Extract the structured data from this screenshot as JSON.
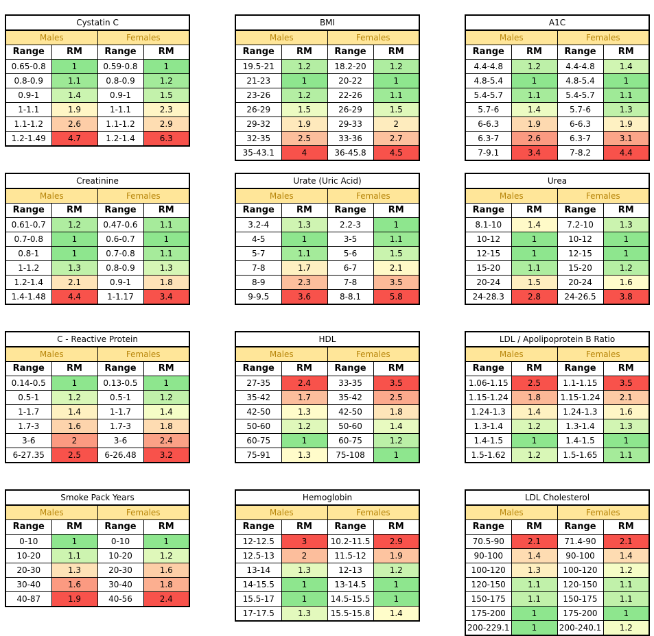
{
  "labels": {
    "males": "Males",
    "females": "Females",
    "range": "Range",
    "rm": "RM"
  },
  "colors": {
    "header_fill": "#ffe699",
    "header_text": "#b8860b",
    "scale_low": "#8ee68e",
    "scale_mid": "#ffffcc",
    "scale_high": "#f8524b"
  },
  "tables": [
    {
      "title": "Cystatin C",
      "rows": [
        {
          "mr": "0.65-0.8",
          "mv": "1",
          "fr": "0.59-0.8",
          "fv": "1"
        },
        {
          "mr": "0.8-0.9",
          "mv": "1.1",
          "fr": "0.8-0.9",
          "fv": "1.2"
        },
        {
          "mr": "0.9-1",
          "mv": "1.4",
          "fr": "0.9-1",
          "fv": "1.5"
        },
        {
          "mr": "1-1.1",
          "mv": "1.9",
          "fr": "1-1.1",
          "fv": "2.3"
        },
        {
          "mr": "1.1-1.2",
          "mv": "2.6",
          "fr": "1.1-1.2",
          "fv": "2.9"
        },
        {
          "mr": "1.2-1.49",
          "mv": "4.7",
          "fr": "1.2-1.4",
          "fv": "6.3"
        }
      ]
    },
    {
      "title": "BMI",
      "rows": [
        {
          "mr": "19.5-21",
          "mv": "1.2",
          "fr": "18.2-20",
          "fv": "1.2"
        },
        {
          "mr": "21-23",
          "mv": "1",
          "fr": "20-22",
          "fv": "1"
        },
        {
          "mr": "23-26",
          "mv": "1.2",
          "fr": "22-26",
          "fv": "1.1"
        },
        {
          "mr": "26-29",
          "mv": "1.5",
          "fr": "26-29",
          "fv": "1.5"
        },
        {
          "mr": "29-32",
          "mv": "1.9",
          "fr": "29-33",
          "fv": "2"
        },
        {
          "mr": "32-35",
          "mv": "2.5",
          "fr": "33-36",
          "fv": "2.7"
        },
        {
          "mr": "35-43.1",
          "mv": "4",
          "fr": "36-45.8",
          "fv": "4.5"
        }
      ]
    },
    {
      "title": "A1C",
      "rows": [
        {
          "mr": "4.4-4.8",
          "mv": "1.2",
          "fr": "4.4-4.8",
          "fv": "1.4"
        },
        {
          "mr": "4.8-5.4",
          "mv": "1",
          "fr": "4.8-5.4",
          "fv": "1"
        },
        {
          "mr": "5.4-5.7",
          "mv": "1.1",
          "fr": "5.4-5.7",
          "fv": "1.1"
        },
        {
          "mr": "5.7-6",
          "mv": "1.4",
          "fr": "5.7-6",
          "fv": "1.3"
        },
        {
          "mr": "6-6.3",
          "mv": "1.9",
          "fr": "6-6.3",
          "fv": "1.9"
        },
        {
          "mr": "6.3-7",
          "mv": "2.6",
          "fr": "6.3-7",
          "fv": "3.1"
        },
        {
          "mr": "7-9.1",
          "mv": "3.4",
          "fr": "7-8.2",
          "fv": "4.4"
        }
      ]
    },
    {
      "title": "Creatinine",
      "rows": [
        {
          "mr": "0.61-0.7",
          "mv": "1.2",
          "fr": "0.47-0.6",
          "fv": "1.1"
        },
        {
          "mr": "0.7-0.8",
          "mv": "1",
          "fr": "0.6-0.7",
          "fv": "1"
        },
        {
          "mr": "0.8-1",
          "mv": "1",
          "fr": "0.7-0.8",
          "fv": "1.1"
        },
        {
          "mr": "1-1.2",
          "mv": "1.3",
          "fr": "0.8-0.9",
          "fv": "1.3"
        },
        {
          "mr": "1.2-1.4",
          "mv": "2.1",
          "fr": "0.9-1",
          "fv": "1.8"
        },
        {
          "mr": "1.4-1.48",
          "mv": "4.4",
          "fr": "1-1.17",
          "fv": "3.4"
        }
      ]
    },
    {
      "title": "Urate (Uric Acid)",
      "rows": [
        {
          "mr": "3.2-4",
          "mv": "1.3",
          "fr": "2.2-3",
          "fv": "1"
        },
        {
          "mr": "4-5",
          "mv": "1",
          "fr": "3-5",
          "fv": "1.1"
        },
        {
          "mr": "5-7",
          "mv": "1.1",
          "fr": "5-6",
          "fv": "1.5"
        },
        {
          "mr": "7-8",
          "mv": "1.7",
          "fr": "6-7",
          "fv": "2.1"
        },
        {
          "mr": "8-9",
          "mv": "2.3",
          "fr": "7-8",
          "fv": "3.5"
        },
        {
          "mr": "9-9.5",
          "mv": "3.6",
          "fr": "8-8.1",
          "fv": "5.8"
        }
      ]
    },
    {
      "title": "Urea",
      "rows": [
        {
          "mr": "8.1-10",
          "mv": "1.4",
          "fr": "7.2-10",
          "fv": "1.3"
        },
        {
          "mr": "10-12",
          "mv": "1",
          "fr": "10-12",
          "fv": "1"
        },
        {
          "mr": "12-15",
          "mv": "1",
          "fr": "12-15",
          "fv": "1"
        },
        {
          "mr": "15-20",
          "mv": "1.1",
          "fr": "15-20",
          "fv": "1.2"
        },
        {
          "mr": "20-24",
          "mv": "1.5",
          "fr": "20-24",
          "fv": "1.6"
        },
        {
          "mr": "24-28.3",
          "mv": "2.8",
          "fr": "24-26.5",
          "fv": "3.8"
        }
      ]
    },
    {
      "title": "C - Reactive Protein",
      "rows": [
        {
          "mr": "0.14-0.5",
          "mv": "1",
          "fr": "0.13-0.5",
          "fv": "1"
        },
        {
          "mr": "0.5-1",
          "mv": "1.2",
          "fr": "0.5-1",
          "fv": "1.2"
        },
        {
          "mr": "1-1.7",
          "mv": "1.4",
          "fr": "1-1.7",
          "fv": "1.4"
        },
        {
          "mr": "1.7-3",
          "mv": "1.6",
          "fr": "1.7-3",
          "fv": "1.8"
        },
        {
          "mr": "3-6",
          "mv": "2",
          "fr": "3-6",
          "fv": "2.4"
        },
        {
          "mr": "6-27.35",
          "mv": "2.5",
          "fr": "6-26.48",
          "fv": "3.2"
        }
      ]
    },
    {
      "title": "HDL",
      "rows": [
        {
          "mr": "27-35",
          "mv": "2.4",
          "fr": "33-35",
          "fv": "3.5"
        },
        {
          "mr": "35-42",
          "mv": "1.7",
          "fr": "35-42",
          "fv": "2.5"
        },
        {
          "mr": "42-50",
          "mv": "1.3",
          "fr": "42-50",
          "fv": "1.8"
        },
        {
          "mr": "50-60",
          "mv": "1.2",
          "fr": "50-60",
          "fv": "1.4"
        },
        {
          "mr": "60-75",
          "mv": "1",
          "fr": "60-75",
          "fv": "1.2"
        },
        {
          "mr": "75-91",
          "mv": "1.3",
          "fr": "75-108",
          "fv": "1"
        }
      ]
    },
    {
      "title": "LDL / Apolipoprotein B Ratio",
      "rows": [
        {
          "mr": "1.06-1.15",
          "mv": "2.5",
          "fr": "1.1-1.15",
          "fv": "3.5"
        },
        {
          "mr": "1.15-1.24",
          "mv": "1.8",
          "fr": "1.15-1.24",
          "fv": "2.1"
        },
        {
          "mr": "1.24-1.3",
          "mv": "1.4",
          "fr": "1.24-1.3",
          "fv": "1.6"
        },
        {
          "mr": "1.3-1.4",
          "mv": "1.2",
          "fr": "1.3-1.4",
          "fv": "1.3"
        },
        {
          "mr": "1.4-1.5",
          "mv": "1",
          "fr": "1.4-1.5",
          "fv": "1"
        },
        {
          "mr": "1.5-1.62",
          "mv": "1.2",
          "fr": "1.5-1.65",
          "fv": "1.1"
        }
      ]
    },
    {
      "title": "Smoke Pack Years",
      "rows": [
        {
          "mr": "0-10",
          "mv": "1",
          "fr": "0-10",
          "fv": "1"
        },
        {
          "mr": "10-20",
          "mv": "1.1",
          "fr": "10-20",
          "fv": "1.2"
        },
        {
          "mr": "20-30",
          "mv": "1.3",
          "fr": "20-30",
          "fv": "1.6"
        },
        {
          "mr": "30-40",
          "mv": "1.6",
          "fr": "30-40",
          "fv": "1.8"
        },
        {
          "mr": "40-87",
          "mv": "1.9",
          "fr": "40-56",
          "fv": "2.4"
        }
      ]
    },
    {
      "title": "Hemoglobin",
      "rows": [
        {
          "mr": "12-12.5",
          "mv": "3",
          "fr": "10.2-11.5",
          "fv": "2.9"
        },
        {
          "mr": "12.5-13",
          "mv": "2",
          "fr": "11.5-12",
          "fv": "1.9"
        },
        {
          "mr": "13-14",
          "mv": "1.3",
          "fr": "12-13",
          "fv": "1.2"
        },
        {
          "mr": "14-15.5",
          "mv": "1",
          "fr": "13-14.5",
          "fv": "1"
        },
        {
          "mr": "15.5-17",
          "mv": "1",
          "fr": "14.5-15.5",
          "fv": "1"
        },
        {
          "mr": "17-17.5",
          "mv": "1.3",
          "fr": "15.5-15.8",
          "fv": "1.4"
        }
      ]
    },
    {
      "title": "LDL Cholesterol",
      "rows": [
        {
          "mr": "70.5-90",
          "mv": "2.1",
          "fr": "71.4-90",
          "fv": "2.1"
        },
        {
          "mr": "90-100",
          "mv": "1.4",
          "fr": "90-100",
          "fv": "1.4"
        },
        {
          "mr": "100-120",
          "mv": "1.3",
          "fr": "100-120",
          "fv": "1.2"
        },
        {
          "mr": "120-150",
          "mv": "1.1",
          "fr": "120-150",
          "fv": "1.1"
        },
        {
          "mr": "150-175",
          "mv": "1.1",
          "fr": "150-175",
          "fv": "1.1"
        },
        {
          "mr": "175-200",
          "mv": "1",
          "fr": "175-200",
          "fv": "1"
        },
        {
          "mr": "200-229.1",
          "mv": "1",
          "fr": "200-240.1",
          "fv": "1.2"
        }
      ]
    }
  ]
}
